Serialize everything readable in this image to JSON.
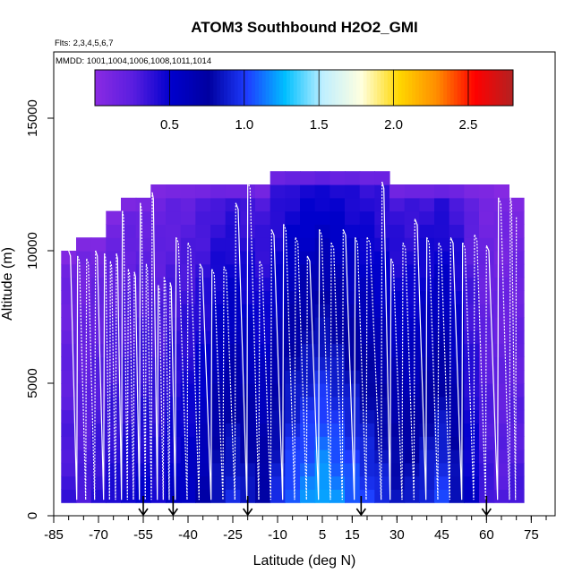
{
  "chart_data": {
    "type": "heatmap",
    "title": "ATOM3 Southbound H2O2_GMI",
    "subtitle_flights": "Flts: 2,3,4,5,6,7",
    "subtitle_dates": "MMDD: 1001,1004,1006,1008,1011,1014",
    "xlabel": "Latitude (deg N)",
    "ylabel": "Altitude (m)",
    "xlim": [
      -85,
      83
    ],
    "ylim": [
      0,
      17500
    ],
    "x_ticks": [
      -85,
      -70,
      -55,
      -40,
      -25,
      -10,
      5,
      15,
      30,
      45,
      60,
      75
    ],
    "y_ticks": [
      0,
      5000,
      10000,
      15000
    ],
    "colorbar": {
      "min": 0,
      "max": 2.8,
      "ticks": [
        0.5,
        1.0,
        1.5,
        2.0,
        2.5
      ],
      "tick_labels": [
        "0.5",
        "1.0",
        "1.5",
        "2.0",
        "2.5"
      ],
      "colors": [
        "#8b2be2",
        "#5a1ee0",
        "#0000cd",
        "#0000a0",
        "#1e3cff",
        "#00bfff",
        "#bfefff",
        "#ffffe0",
        "#ffd700",
        "#ff8c00",
        "#ff0000",
        "#b22222"
      ]
    },
    "columns": [
      {
        "lat": -80,
        "top": 10000,
        "val": 0.22
      },
      {
        "lat": -75,
        "top": 10300,
        "val": 0.2
      },
      {
        "lat": -70,
        "top": 10500,
        "val": 0.25
      },
      {
        "lat": -65,
        "top": 11300,
        "val": 0.28
      },
      {
        "lat": -60,
        "top": 11800,
        "val": 0.3
      },
      {
        "lat": -55,
        "top": 12000,
        "val": 0.32
      },
      {
        "lat": -50,
        "top": 12500,
        "val": 0.3
      },
      {
        "lat": -45,
        "top": 12500,
        "val": 0.35
      },
      {
        "lat": -40,
        "top": 12500,
        "val": 0.38
      },
      {
        "lat": -35,
        "top": 12500,
        "val": 0.45
      },
      {
        "lat": -30,
        "top": 12500,
        "val": 0.55
      },
      {
        "lat": -25,
        "top": 12500,
        "val": 0.6
      },
      {
        "lat": -20,
        "top": 12500,
        "val": 0.55
      },
      {
        "lat": -15,
        "top": 12500,
        "val": 0.5
      },
      {
        "lat": -10,
        "top": 13000,
        "val": 0.6
      },
      {
        "lat": -5,
        "top": 13000,
        "val": 0.7
      },
      {
        "lat": 0,
        "top": 13000,
        "val": 0.75
      },
      {
        "lat": 5,
        "top": 13000,
        "val": 0.8
      },
      {
        "lat": 10,
        "top": 13000,
        "val": 0.75
      },
      {
        "lat": 15,
        "top": 13000,
        "val": 0.7
      },
      {
        "lat": 20,
        "top": 13000,
        "val": 0.65
      },
      {
        "lat": 25,
        "top": 13000,
        "val": 0.6
      },
      {
        "lat": 30,
        "top": 12500,
        "val": 0.55
      },
      {
        "lat": 35,
        "top": 12500,
        "val": 0.55
      },
      {
        "lat": 40,
        "top": 12500,
        "val": 0.6
      },
      {
        "lat": 45,
        "top": 12500,
        "val": 0.65
      },
      {
        "lat": 50,
        "top": 12500,
        "val": 0.55
      },
      {
        "lat": 55,
        "top": 12500,
        "val": 0.35
      },
      {
        "lat": 60,
        "top": 12500,
        "val": 0.22
      },
      {
        "lat": 65,
        "top": 12300,
        "val": 0.18
      },
      {
        "lat": 70,
        "top": 12000,
        "val": 0.2
      }
    ],
    "profile_lats": [
      -80,
      -77,
      -74,
      -71,
      -68,
      -66,
      -64,
      -62,
      -60,
      -58,
      -56,
      -54,
      -52,
      -50,
      -48,
      -46,
      -44,
      -40,
      -36,
      -32,
      -28,
      -24,
      -20,
      -16,
      -12,
      -8,
      -4,
      0,
      4,
      8,
      12,
      16,
      20,
      25,
      28,
      32,
      36,
      40,
      44,
      48,
      52,
      56,
      60,
      64,
      68,
      70
    ],
    "profile_tops": [
      10000,
      9800,
      9700,
      10000,
      9900,
      9600,
      9900,
      11500,
      9300,
      9200,
      11800,
      9500,
      12200,
      8700,
      9000,
      8800,
      10500,
      10300,
      9500,
      9300,
      9400,
      11800,
      12600,
      9600,
      10800,
      11000,
      10500,
      9800,
      10800,
      10300,
      10800,
      10500,
      10500,
      12600,
      9700,
      10300,
      11200,
      10500,
      10300,
      10500,
      10300,
      10600,
      10200,
      12000,
      12000,
      11300
    ],
    "arrows_lat": [
      -55,
      -45,
      -20,
      18,
      60
    ]
  }
}
